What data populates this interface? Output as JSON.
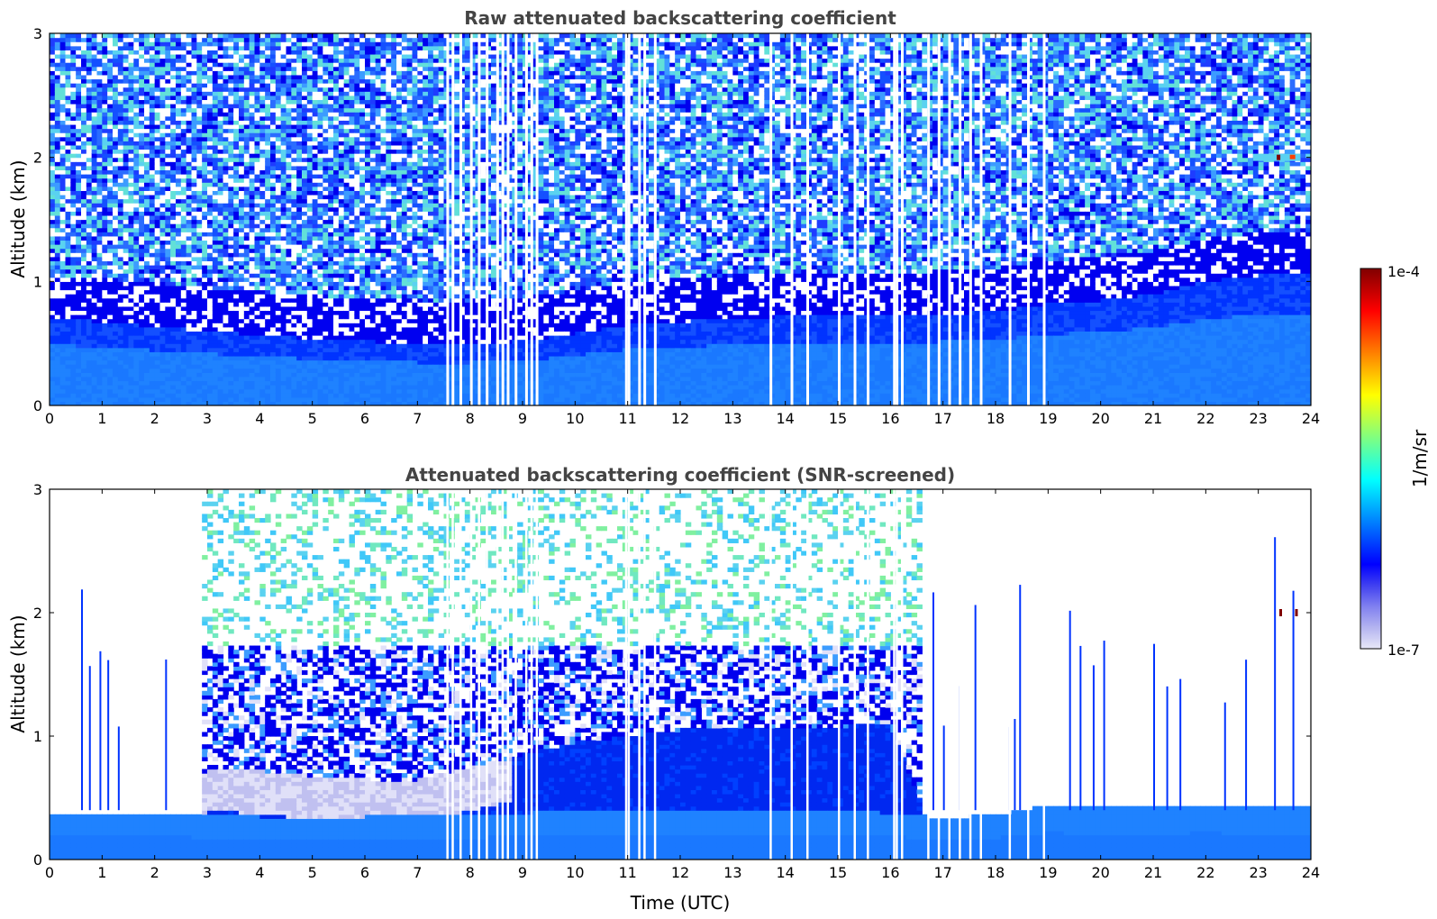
{
  "chart_data": [
    {
      "type": "heatmap",
      "title": "Raw attenuated backscattering coefficient",
      "xlabel": "",
      "ylabel": "Altitude (km)",
      "xlim": [
        0,
        24
      ],
      "ylim": [
        0,
        3
      ],
      "xticks": [
        "0",
        "1",
        "2",
        "3",
        "4",
        "5",
        "6",
        "7",
        "8",
        "9",
        "10",
        "11",
        "12",
        "13",
        "14",
        "15",
        "16",
        "17",
        "18",
        "19",
        "20",
        "21",
        "22",
        "23",
        "24"
      ],
      "yticks": [
        "0",
        "1",
        "2",
        "3"
      ],
      "profile": {
        "boundary_layer_top_km": [
          0.7,
          0.68,
          0.64,
          0.6,
          0.57,
          0.54,
          0.52,
          0.5,
          0.5,
          0.52,
          0.58,
          0.65,
          0.68,
          0.7,
          0.72,
          0.72,
          0.72,
          0.74,
          0.76,
          0.82,
          0.85,
          0.9,
          1.0,
          1.05,
          1.05
        ],
        "boundary_layer_level": "1e-6",
        "free_troposphere_level": "3e-7 to 2e-6 (noisy)",
        "gaps_utc": [
          7.55,
          7.65,
          7.8,
          8.0,
          8.15,
          8.3,
          8.5,
          8.6,
          8.7,
          8.85,
          9.05,
          9.15,
          9.25,
          10.95,
          11.0,
          11.2,
          11.3,
          11.5,
          13.7,
          14.1,
          14.4,
          15.0,
          15.3,
          15.55,
          16.05,
          16.1,
          16.2,
          16.7,
          16.9,
          17.1,
          17.3,
          17.5,
          17.7,
          18.25,
          18.6,
          18.9
        ],
        "aerosol_layer": {
          "x": [
            22.9,
            23.8
          ],
          "y_km": 2.0,
          "value": "1e-4"
        }
      }
    },
    {
      "type": "heatmap",
      "title": "Attenuated backscattering coefficient (SNR-screened)",
      "xlabel": "Time (UTC)",
      "ylabel": "Altitude (km)",
      "xlim": [
        0,
        24
      ],
      "ylim": [
        0,
        3
      ],
      "xticks": [
        "0",
        "1",
        "2",
        "3",
        "4",
        "5",
        "6",
        "7",
        "8",
        "9",
        "10",
        "11",
        "12",
        "13",
        "14",
        "15",
        "16",
        "17",
        "18",
        "19",
        "20",
        "21",
        "22",
        "23",
        "24"
      ],
      "yticks": [
        "0",
        "1",
        "2",
        "3"
      ],
      "profile": {
        "surface_layer_top_km": [
          0.38,
          0.38,
          0.38,
          0.36,
          0.35,
          0.35,
          0.35,
          0.36,
          0.36,
          0.38,
          0.4,
          0.4,
          0.4,
          0.4,
          0.4,
          0.4,
          0.38,
          0.34,
          0.36,
          0.44,
          0.42,
          0.42,
          0.44,
          0.42,
          0.42
        ],
        "dense_layer_top_km": [
          0,
          0,
          0,
          0.75,
          0.72,
          0.68,
          0.65,
          0.65,
          0.75,
          0.85,
          0.95,
          1.0,
          1.05,
          1.05,
          1.05,
          1.08,
          1.1,
          0,
          0,
          0,
          0,
          0,
          0,
          0,
          0
        ],
        "noise_region_utc": [
          2.9,
          16.6
        ],
        "noise_max_km": [
          3.0,
          1.7
        ],
        "aerosol_layer": {
          "x": [
            23.4,
            23.8
          ],
          "y_km": 2.0,
          "value": "1e-4"
        }
      }
    }
  ],
  "colorbar": {
    "label": "1/m/sr",
    "max_label": "1e-4",
    "min_label": "1e-7",
    "colormap": "jet",
    "colors": [
      "#e8e8f8",
      "#b4b4f0",
      "#8080f0",
      "#4040f0",
      "#0000ff",
      "#0040ff",
      "#0080ff",
      "#00c0ff",
      "#00ffff",
      "#40ffc0",
      "#80ff80",
      "#c0ff40",
      "#ffff00",
      "#ffc000",
      "#ff8000",
      "#ff4000",
      "#ff0000",
      "#c00000",
      "#800000"
    ]
  }
}
